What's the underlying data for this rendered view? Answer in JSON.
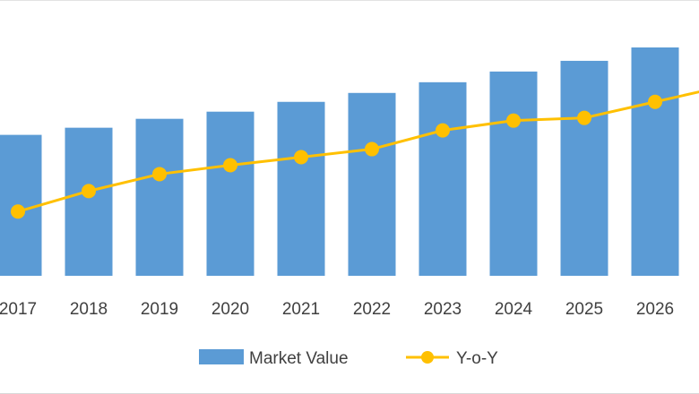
{
  "chart_data": {
    "type": "bar",
    "categories": [
      "2017",
      "2018",
      "2019",
      "2020",
      "2021",
      "2022",
      "2023",
      "2024",
      "2025",
      "2026"
    ],
    "series": [
      {
        "name": "Market Value",
        "type": "bar",
        "color": "#5b9bd5",
        "values": [
          158,
          166,
          176,
          184,
          195,
          205,
          217,
          229,
          241,
          256
        ]
      },
      {
        "name": "Y-o-Y",
        "type": "line",
        "color": "#ffc000",
        "values": [
          72,
          95,
          114,
          124,
          133,
          142,
          163,
          174,
          177,
          195
        ]
      }
    ],
    "ylim": [
      0,
      260
    ],
    "grid": false,
    "legend_position": "bottom-center",
    "title": "",
    "xlabel": "",
    "ylabel": ""
  }
}
